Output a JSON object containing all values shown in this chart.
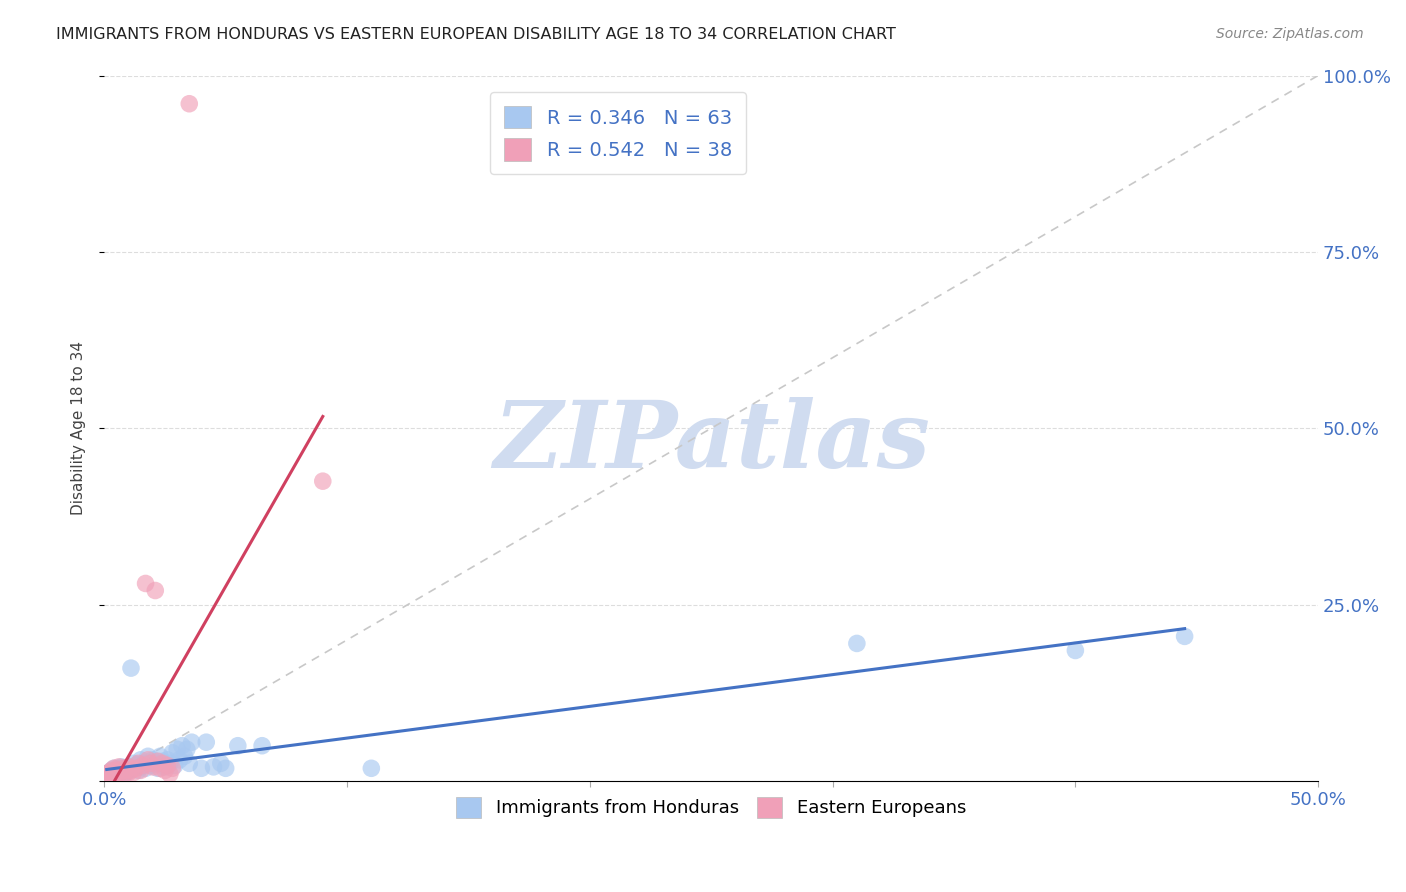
{
  "title": "IMMIGRANTS FROM HONDURAS VS EASTERN EUROPEAN DISABILITY AGE 18 TO 34 CORRELATION CHART",
  "source": "Source: ZipAtlas.com",
  "ylabel": "Disability Age 18 to 34",
  "xlim": [
    0.0,
    0.5
  ],
  "ylim": [
    0.0,
    1.0
  ],
  "blue_color": "#A8C8F0",
  "pink_color": "#F0A0B8",
  "blue_line_color": "#4472C4",
  "pink_line_color": "#D04060",
  "diag_color": "#C8C8C8",
  "watermark": "ZIPatlas",
  "watermark_color": "#D0DCF0",
  "legend_label_blue": "Immigrants from Honduras",
  "legend_label_pink": "Eastern Europeans",
  "blue_points": [
    [
      0.001,
      0.005
    ],
    [
      0.001,
      0.008
    ],
    [
      0.001,
      0.01
    ],
    [
      0.002,
      0.007
    ],
    [
      0.002,
      0.012
    ],
    [
      0.002,
      0.005
    ],
    [
      0.003,
      0.008
    ],
    [
      0.003,
      0.015
    ],
    [
      0.003,
      0.01
    ],
    [
      0.004,
      0.005
    ],
    [
      0.004,
      0.012
    ],
    [
      0.004,
      0.018
    ],
    [
      0.005,
      0.008
    ],
    [
      0.005,
      0.015
    ],
    [
      0.005,
      0.007
    ],
    [
      0.006,
      0.01
    ],
    [
      0.006,
      0.018
    ],
    [
      0.007,
      0.012
    ],
    [
      0.007,
      0.02
    ],
    [
      0.008,
      0.015
    ],
    [
      0.008,
      0.008
    ],
    [
      0.009,
      0.018
    ],
    [
      0.009,
      0.012
    ],
    [
      0.01,
      0.015
    ],
    [
      0.01,
      0.02
    ],
    [
      0.011,
      0.16
    ],
    [
      0.012,
      0.025
    ],
    [
      0.013,
      0.022
    ],
    [
      0.014,
      0.015
    ],
    [
      0.015,
      0.03
    ],
    [
      0.015,
      0.02
    ],
    [
      0.016,
      0.025
    ],
    [
      0.017,
      0.018
    ],
    [
      0.018,
      0.035
    ],
    [
      0.019,
      0.022
    ],
    [
      0.02,
      0.03
    ],
    [
      0.021,
      0.025
    ],
    [
      0.022,
      0.018
    ],
    [
      0.023,
      0.035
    ],
    [
      0.024,
      0.028
    ],
    [
      0.025,
      0.02
    ],
    [
      0.026,
      0.03
    ],
    [
      0.027,
      0.025
    ],
    [
      0.028,
      0.04
    ],
    [
      0.029,
      0.022
    ],
    [
      0.03,
      0.045
    ],
    [
      0.031,
      0.03
    ],
    [
      0.032,
      0.05
    ],
    [
      0.033,
      0.035
    ],
    [
      0.034,
      0.045
    ],
    [
      0.035,
      0.025
    ],
    [
      0.036,
      0.055
    ],
    [
      0.04,
      0.018
    ],
    [
      0.042,
      0.055
    ],
    [
      0.045,
      0.02
    ],
    [
      0.048,
      0.025
    ],
    [
      0.05,
      0.018
    ],
    [
      0.055,
      0.05
    ],
    [
      0.065,
      0.05
    ],
    [
      0.11,
      0.018
    ],
    [
      0.31,
      0.195
    ],
    [
      0.4,
      0.185
    ],
    [
      0.445,
      0.205
    ]
  ],
  "pink_points": [
    [
      0.001,
      0.005
    ],
    [
      0.001,
      0.01
    ],
    [
      0.002,
      0.008
    ],
    [
      0.002,
      0.012
    ],
    [
      0.003,
      0.007
    ],
    [
      0.003,
      0.015
    ],
    [
      0.004,
      0.01
    ],
    [
      0.004,
      0.018
    ],
    [
      0.005,
      0.008
    ],
    [
      0.005,
      0.015
    ],
    [
      0.006,
      0.01
    ],
    [
      0.006,
      0.02
    ],
    [
      0.007,
      0.012
    ],
    [
      0.008,
      0.018
    ],
    [
      0.008,
      0.01
    ],
    [
      0.009,
      0.015
    ],
    [
      0.01,
      0.012
    ],
    [
      0.01,
      0.02
    ],
    [
      0.011,
      0.015
    ],
    [
      0.012,
      0.012
    ],
    [
      0.013,
      0.018
    ],
    [
      0.014,
      0.025
    ],
    [
      0.015,
      0.015
    ],
    [
      0.016,
      0.022
    ],
    [
      0.017,
      0.28
    ],
    [
      0.018,
      0.03
    ],
    [
      0.019,
      0.025
    ],
    [
      0.02,
      0.02
    ],
    [
      0.021,
      0.27
    ],
    [
      0.022,
      0.028
    ],
    [
      0.023,
      0.018
    ],
    [
      0.024,
      0.025
    ],
    [
      0.025,
      0.015
    ],
    [
      0.026,
      0.022
    ],
    [
      0.027,
      0.01
    ],
    [
      0.028,
      0.018
    ],
    [
      0.035,
      0.96
    ],
    [
      0.09,
      0.425
    ]
  ]
}
